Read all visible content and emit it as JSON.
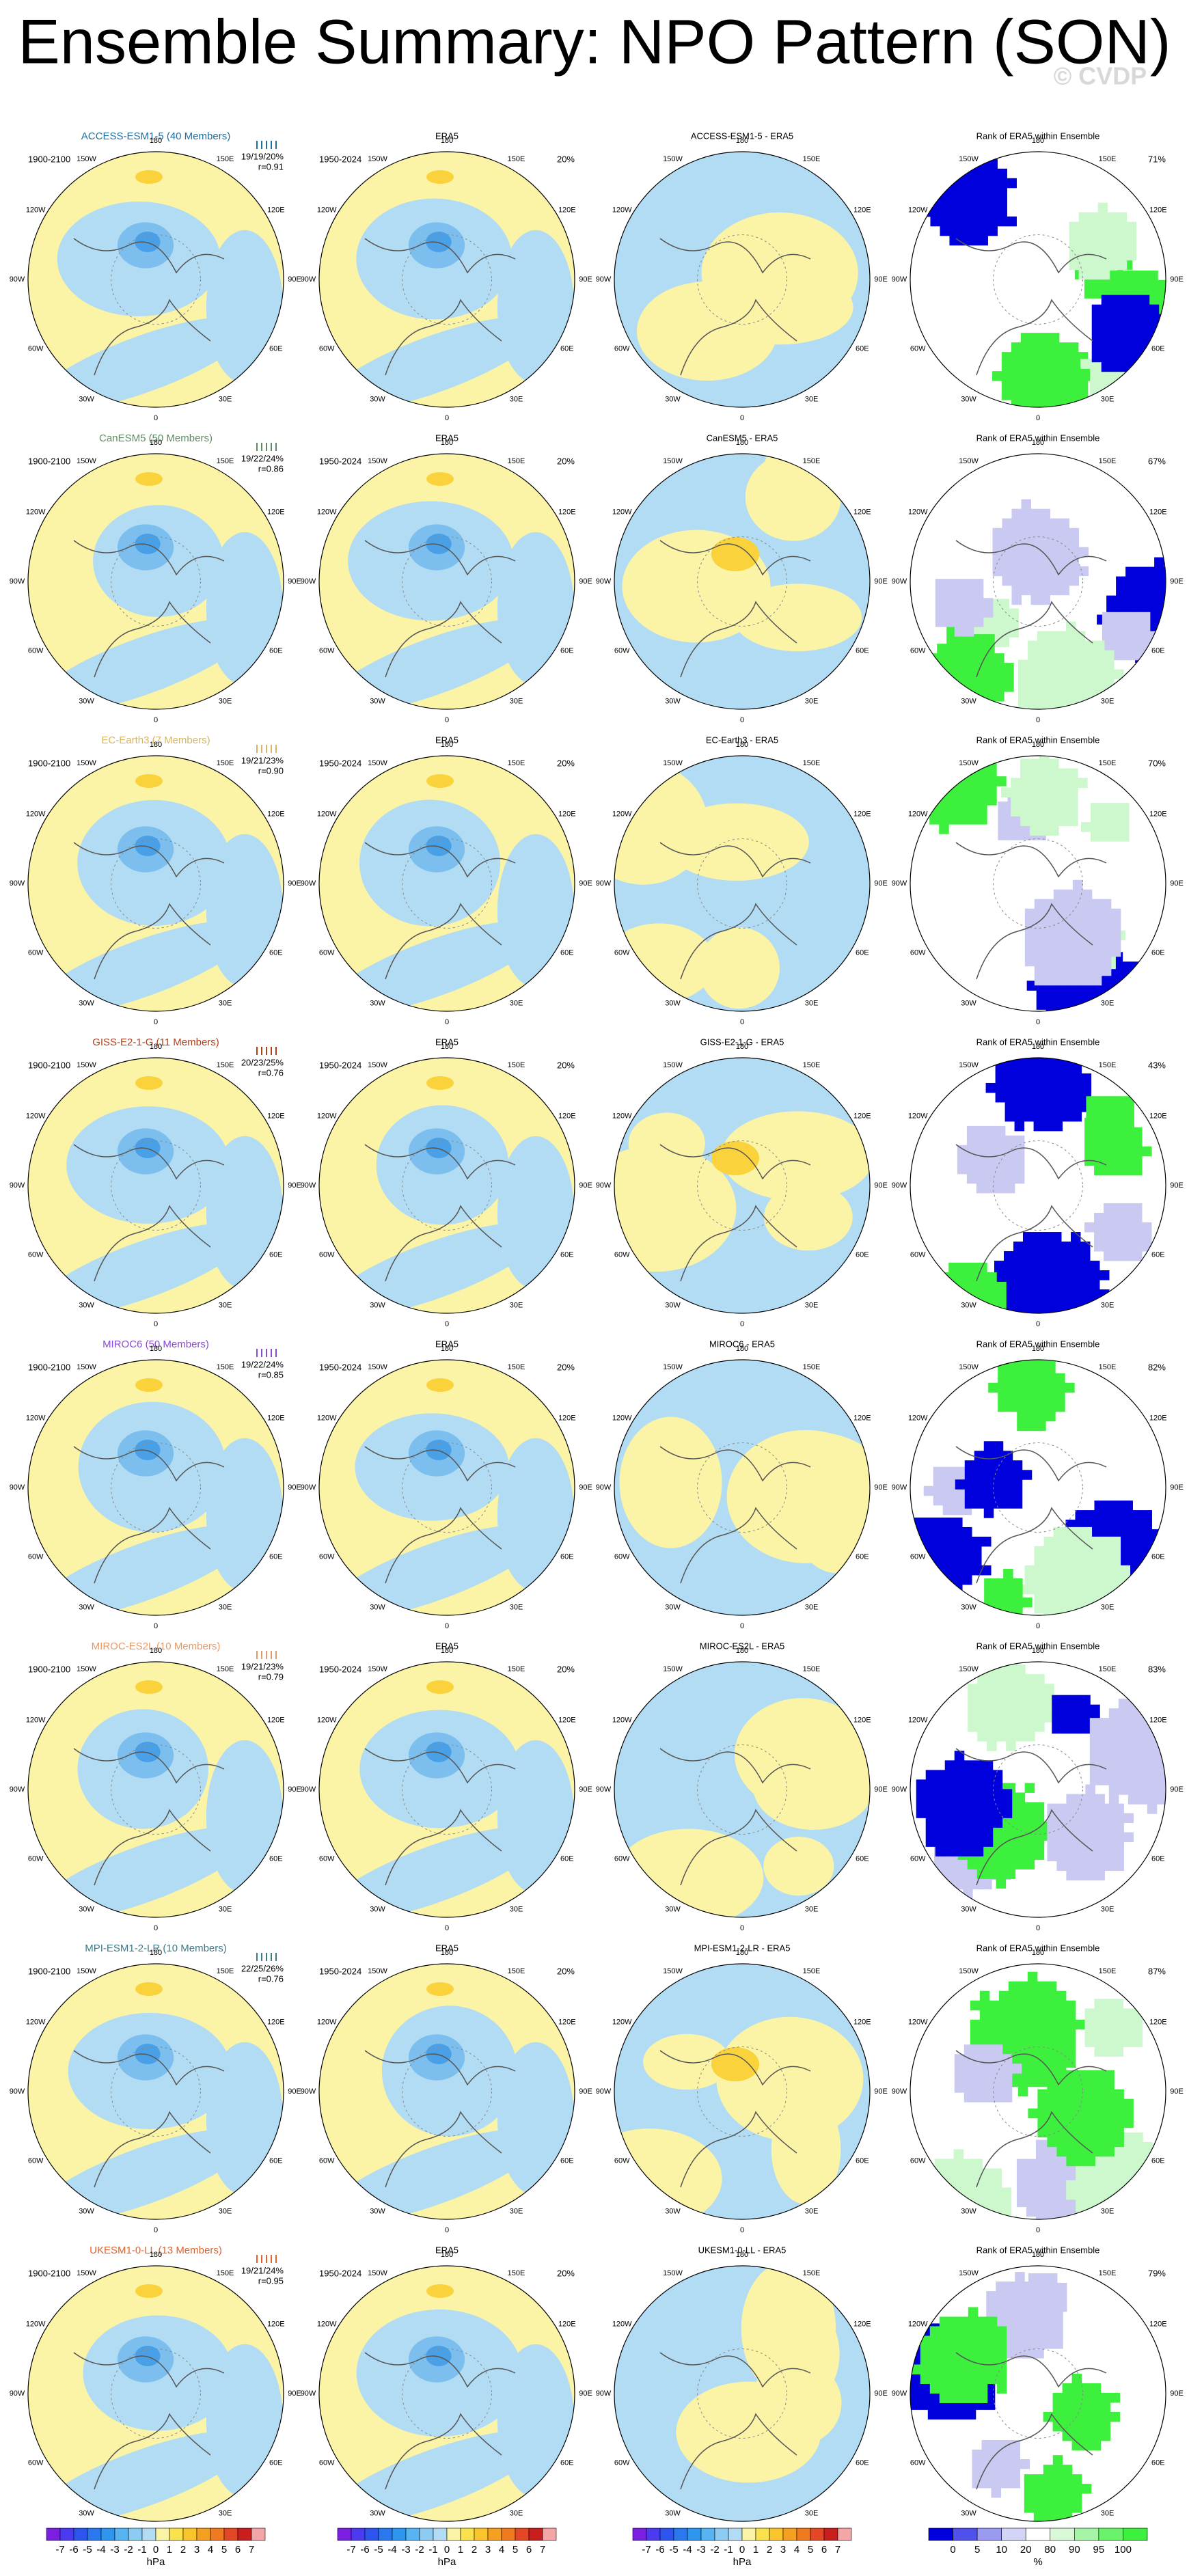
{
  "header": {
    "title": "Ensemble Summary: NPO Pattern (SON)",
    "watermark": "© CVDP"
  },
  "lon_labels": [
    "180",
    "150E",
    "120E",
    "90E",
    "60E",
    "30E",
    "0",
    "30W",
    "60W",
    "90W",
    "120W",
    "150W"
  ],
  "rows": [
    {
      "model": "ACCESS-ESM1-5 (40 Members)",
      "color": "#1f6e9c",
      "period": "1900-2100",
      "stats": "19/19/20%",
      "r": "r=0.91",
      "era5_title": "ERA5",
      "era5_period": "1950-2024",
      "era5_pct": "20%",
      "diff_title": "ACCESS-ESM1-5 - ERA5",
      "rank_title": "Rank of ERA5 within Ensemble",
      "rank_pct": "71%"
    },
    {
      "model": "CanESM5 (50 Members)",
      "color": "#5d8a62",
      "period": "1900-2100",
      "stats": "19/22/24%",
      "r": "r=0.86",
      "era5_title": "ERA5",
      "era5_period": "1950-2024",
      "era5_pct": "20%",
      "diff_title": "CanESM5 - ERA5",
      "rank_title": "Rank of ERA5 within Ensemble",
      "rank_pct": "67%"
    },
    {
      "model": "EC-Earth3 (7 Members)",
      "color": "#d6b466",
      "period": "1900-2100",
      "stats": "19/21/23%",
      "r": "r=0.90",
      "era5_title": "ERA5",
      "era5_period": "1950-2024",
      "era5_pct": "20%",
      "diff_title": "EC-Earth3 - ERA5",
      "rank_title": "Rank of ERA5 within Ensemble",
      "rank_pct": "70%"
    },
    {
      "model": "GISS-E2-1-G (11 Members)",
      "color": "#b0401c",
      "period": "1900-2100",
      "stats": "20/23/25%",
      "r": "r=0.76",
      "era5_title": "ERA5",
      "era5_period": "1950-2024",
      "era5_pct": "20%",
      "diff_title": "GISS-E2-1-G - ERA5",
      "rank_title": "Rank of ERA5 within Ensemble",
      "rank_pct": "43%"
    },
    {
      "model": "MIROC6 (50 Members)",
      "color": "#8a4ad4",
      "period": "1900-2100",
      "stats": "19/22/24%",
      "r": "r=0.85",
      "era5_title": "ERA5",
      "era5_period": "1950-2024",
      "era5_pct": "20%",
      "diff_title": "MIROC6 - ERA5",
      "rank_title": "Rank of ERA5 within Ensemble",
      "rank_pct": "82%"
    },
    {
      "model": "MIROC-ES2L (10 Members)",
      "color": "#e39a68",
      "period": "1900-2100",
      "stats": "19/21/23%",
      "r": "r=0.79",
      "era5_title": "ERA5",
      "era5_period": "1950-2024",
      "era5_pct": "20%",
      "diff_title": "MIROC-ES2L - ERA5",
      "rank_title": "Rank of ERA5 within Ensemble",
      "rank_pct": "83%"
    },
    {
      "model": "MPI-ESM1-2-LR (10 Members)",
      "color": "#3c7a88",
      "period": "1900-2100",
      "stats": "22/25/26%",
      "r": "r=0.76",
      "era5_title": "ERA5",
      "era5_period": "1950-2024",
      "era5_pct": "20%",
      "diff_title": "MPI-ESM1-2-LR - ERA5",
      "rank_title": "Rank of ERA5 within Ensemble",
      "rank_pct": "87%"
    },
    {
      "model": "UKESM1-0-LL (13 Members)",
      "color": "#e0642e",
      "period": "1900-2100",
      "stats": "19/21/24%",
      "r": "r=0.95",
      "era5_title": "ERA5",
      "era5_period": "1950-2024",
      "era5_pct": "20%",
      "diff_title": "UKESM1-0-LL - ERA5",
      "rank_title": "Rank of ERA5 within Ensemble",
      "rank_pct": "79%"
    }
  ],
  "colorbars": {
    "hpa": {
      "labels": [
        "-7",
        "-6",
        "-5",
        "-4",
        "-3",
        "-2",
        "-1",
        "0",
        "1",
        "2",
        "3",
        "4",
        "5",
        "6",
        "7"
      ],
      "unit": "hPa"
    },
    "rank": {
      "labels": [
        "0",
        "5",
        "10",
        "20",
        "80",
        "90",
        "95",
        "100"
      ],
      "unit": "%"
    }
  }
}
